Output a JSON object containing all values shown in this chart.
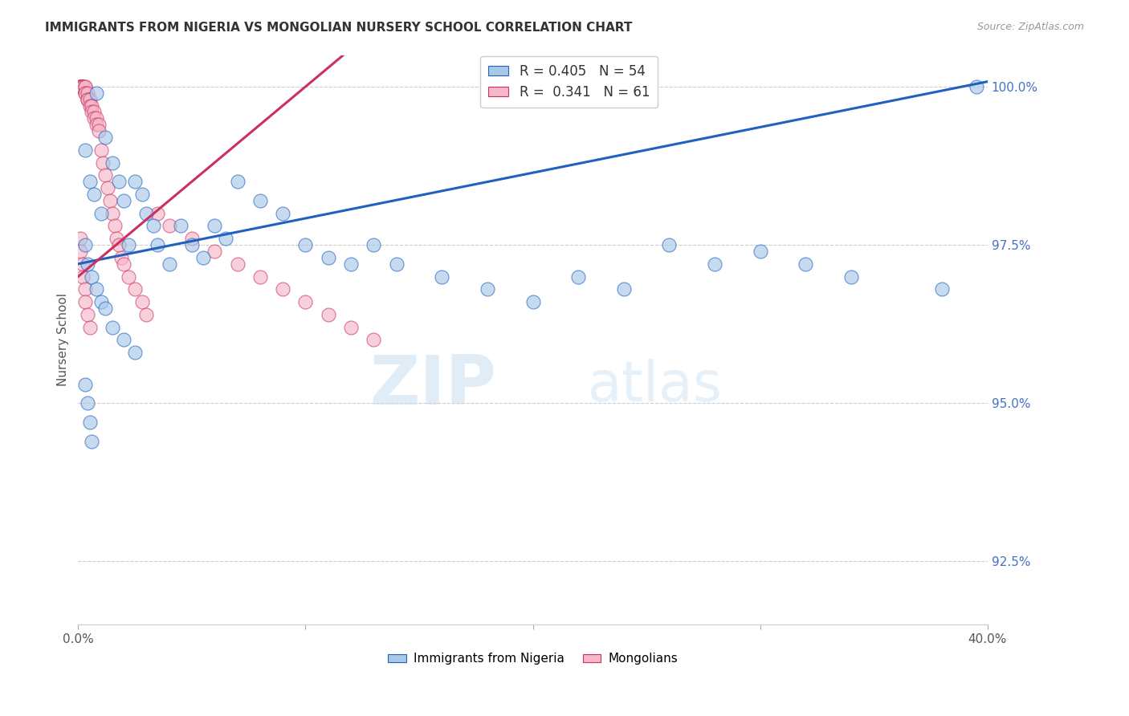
{
  "title": "IMMIGRANTS FROM NIGERIA VS MONGOLIAN NURSERY SCHOOL CORRELATION CHART",
  "source": "Source: ZipAtlas.com",
  "ylabel": "Nursery School",
  "xlim": [
    0.0,
    0.4
  ],
  "ylim": [
    0.915,
    1.005
  ],
  "yticks": [
    0.925,
    0.95,
    0.975,
    1.0
  ],
  "ytick_labels": [
    "92.5%",
    "95.0%",
    "97.5%",
    "100.0%"
  ],
  "legend1_label": "R = 0.405   N = 54",
  "legend2_label": "R =  0.341   N = 61",
  "watermark_zip": "ZIP",
  "watermark_atlas": "atlas",
  "blue_color": "#a8c8e8",
  "pink_color": "#f5b8c8",
  "trendline_blue": "#2060c0",
  "trendline_pink": "#cc3060",
  "nigeria_x": [
    0.003,
    0.005,
    0.007,
    0.008,
    0.01,
    0.012,
    0.015,
    0.018,
    0.02,
    0.022,
    0.025,
    0.028,
    0.03,
    0.033,
    0.035,
    0.04,
    0.045,
    0.05,
    0.055,
    0.06,
    0.065,
    0.07,
    0.08,
    0.09,
    0.1,
    0.11,
    0.12,
    0.13,
    0.14,
    0.16,
    0.18,
    0.2,
    0.22,
    0.24,
    0.26,
    0.28,
    0.3,
    0.32,
    0.34,
    0.38,
    0.395,
    0.003,
    0.004,
    0.006,
    0.008,
    0.01,
    0.012,
    0.015,
    0.02,
    0.025,
    0.003,
    0.004,
    0.005,
    0.006
  ],
  "nigeria_y": [
    0.99,
    0.985,
    0.983,
    0.999,
    0.98,
    0.992,
    0.988,
    0.985,
    0.982,
    0.975,
    0.985,
    0.983,
    0.98,
    0.978,
    0.975,
    0.972,
    0.978,
    0.975,
    0.973,
    0.978,
    0.976,
    0.985,
    0.982,
    0.98,
    0.975,
    0.973,
    0.972,
    0.975,
    0.972,
    0.97,
    0.968,
    0.966,
    0.97,
    0.968,
    0.975,
    0.972,
    0.974,
    0.972,
    0.97,
    0.968,
    1.0,
    0.975,
    0.972,
    0.97,
    0.968,
    0.966,
    0.965,
    0.962,
    0.96,
    0.958,
    0.953,
    0.95,
    0.947,
    0.944
  ],
  "mongolian_x": [
    0.001,
    0.001,
    0.001,
    0.001,
    0.001,
    0.002,
    0.002,
    0.002,
    0.002,
    0.002,
    0.003,
    0.003,
    0.003,
    0.003,
    0.004,
    0.004,
    0.004,
    0.005,
    0.005,
    0.006,
    0.006,
    0.007,
    0.007,
    0.008,
    0.008,
    0.009,
    0.009,
    0.01,
    0.011,
    0.012,
    0.013,
    0.014,
    0.015,
    0.016,
    0.017,
    0.018,
    0.019,
    0.02,
    0.022,
    0.025,
    0.028,
    0.03,
    0.035,
    0.04,
    0.05,
    0.06,
    0.07,
    0.08,
    0.09,
    0.1,
    0.11,
    0.12,
    0.13,
    0.001,
    0.001,
    0.002,
    0.002,
    0.003,
    0.003,
    0.004,
    0.005
  ],
  "mongolian_y": [
    1.0,
    1.0,
    1.0,
    1.0,
    1.0,
    1.0,
    1.0,
    1.0,
    1.0,
    1.0,
    1.0,
    1.0,
    0.999,
    0.999,
    0.999,
    0.998,
    0.998,
    0.998,
    0.997,
    0.997,
    0.996,
    0.996,
    0.995,
    0.995,
    0.994,
    0.994,
    0.993,
    0.99,
    0.988,
    0.986,
    0.984,
    0.982,
    0.98,
    0.978,
    0.976,
    0.975,
    0.973,
    0.972,
    0.97,
    0.968,
    0.966,
    0.964,
    0.98,
    0.978,
    0.976,
    0.974,
    0.972,
    0.97,
    0.968,
    0.966,
    0.964,
    0.962,
    0.96,
    0.976,
    0.974,
    0.972,
    0.97,
    0.968,
    0.966,
    0.964,
    0.962
  ]
}
